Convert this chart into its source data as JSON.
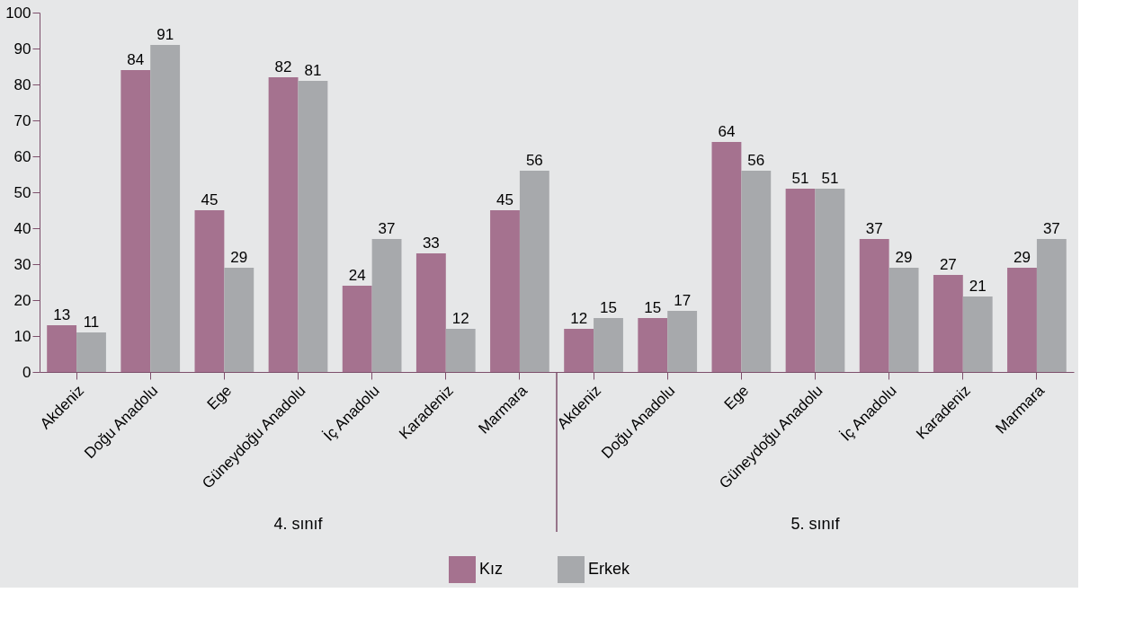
{
  "chart_data": {
    "type": "bar",
    "categories": [
      "Akdeniz",
      "Doğu Anadolu",
      "Ege",
      "Güneydoğu Anadolu",
      "İç Anadolu",
      "Karadeniz",
      "Marmara",
      "Akdeniz",
      "Doğu Anadolu",
      "Ege",
      "Güneydoğu Anadolu",
      "İç Anadolu",
      "Karadeniz",
      "Marmara"
    ],
    "series": [
      {
        "name": "Kız",
        "color": "#a5728f",
        "values": [
          13,
          84,
          45,
          82,
          24,
          33,
          45,
          12,
          15,
          64,
          51,
          37,
          27,
          29
        ]
      },
      {
        "name": "Erkek",
        "color": "#a7a9ac",
        "values": [
          11,
          91,
          29,
          81,
          37,
          12,
          56,
          15,
          17,
          56,
          51,
          29,
          21,
          37
        ]
      }
    ],
    "annotations": [
      "4. sınıf",
      "5. sınıf"
    ],
    "ylim": [
      0,
      100
    ],
    "yticks": [
      0,
      10,
      20,
      30,
      40,
      50,
      60,
      70,
      80,
      90,
      100
    ],
    "grid": false,
    "legend": "bottom",
    "data_labels": true
  }
}
